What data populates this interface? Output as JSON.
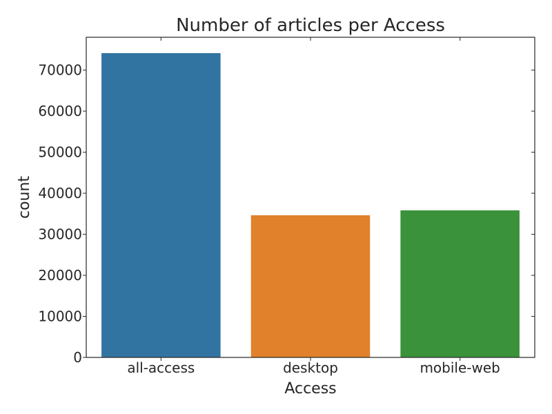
{
  "chart_data": {
    "type": "bar",
    "title": "Number of articles per Access",
    "xlabel": "Access",
    "ylabel": "count",
    "categories": [
      "all-access",
      "desktop",
      "mobile-web"
    ],
    "values": [
      74200,
      34700,
      35900
    ],
    "colors": [
      "#3274a1",
      "#e1812c",
      "#3a923a"
    ],
    "ylim": [
      0,
      78000
    ],
    "yticks": [
      0,
      10000,
      20000,
      30000,
      40000,
      50000,
      60000,
      70000
    ],
    "ytick_labels": [
      "0",
      "10000",
      "20000",
      "30000",
      "40000",
      "50000",
      "60000",
      "70000"
    ],
    "grid": false,
    "legend": "none"
  }
}
